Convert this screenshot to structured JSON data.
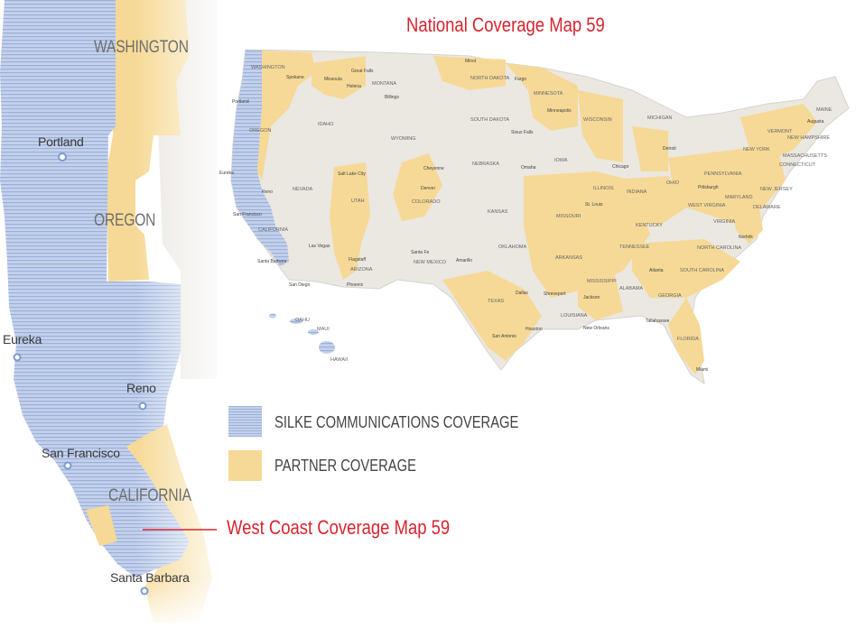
{
  "national_title": "National Coverage Map 59",
  "west_title": "West Coast Coverage Map 59",
  "legend": [
    {
      "label": "SILKE COMMUNICATIONS COVERAGE",
      "color": "#b6c6e6",
      "pattern": "horizontal-stripes"
    },
    {
      "label": "PARTNER COVERAGE",
      "color": "#f6d996",
      "pattern": "solid"
    }
  ],
  "west_coast": {
    "states": [
      "WASHINGTON",
      "OREGON",
      "CALIFORNIA"
    ],
    "cities": [
      "Portland",
      "Eureka",
      "Reno",
      "San Francisco",
      "Santa Barbara"
    ]
  },
  "national": {
    "states": [
      "WASHINGTON",
      "OREGON",
      "IDAHO",
      "MONTANA",
      "WYOMING",
      "NEVADA",
      "UTAH",
      "COLORADO",
      "CALIFORNIA",
      "ARIZONA",
      "NEW MEXICO",
      "NORTH DAKOTA",
      "SOUTH DAKOTA",
      "NEBRASKA",
      "KANSAS",
      "OKLAHOMA",
      "TEXAS",
      "MINNESOTA",
      "IOWA",
      "MISSOURI",
      "ARKANSAS",
      "LOUISIANA",
      "WISCONSIN",
      "ILLINOIS",
      "MICHIGAN",
      "INDIANA",
      "OHIO",
      "KENTUCKY",
      "TENNESSEE",
      "MISSISSIPPI",
      "ALABAMA",
      "GEORGIA",
      "FLORIDA",
      "SOUTH CAROLINA",
      "NORTH CAROLINA",
      "VIRGINIA",
      "WEST VIRGINIA",
      "PENNSYLVANIA",
      "NEW YORK",
      "MARYLAND",
      "DELAWARE",
      "NEW JERSEY",
      "CONNECTICUT",
      "MASSACHUSETTS",
      "VERMONT",
      "NEW HAMPSHIRE",
      "MAINE",
      "OAHU",
      "MAUI",
      "HAWAII"
    ],
    "cities": [
      "Spokane",
      "Missoula",
      "Great Falls",
      "Helena",
      "Billings",
      "Minot",
      "Fargo",
      "Minneapolis",
      "Sioux Falls",
      "Portland",
      "Eureka",
      "Reno",
      "San Francisco",
      "Santa Barbara",
      "San Diego",
      "Las Vegas",
      "Salt Lake City",
      "Cheyenne",
      "Denver",
      "Flagstaff",
      "Phoenix",
      "Santa Fe",
      "Amarillo",
      "Omaha",
      "Dallas",
      "Shreveport",
      "San Antonio",
      "Houston",
      "New Orleans",
      "Jackson",
      "Chicago",
      "Detroit",
      "St. Louis",
      "Pittsburgh",
      "Atlanta",
      "Tallahassee",
      "Miami",
      "Norfolk",
      "Augusta"
    ]
  }
}
